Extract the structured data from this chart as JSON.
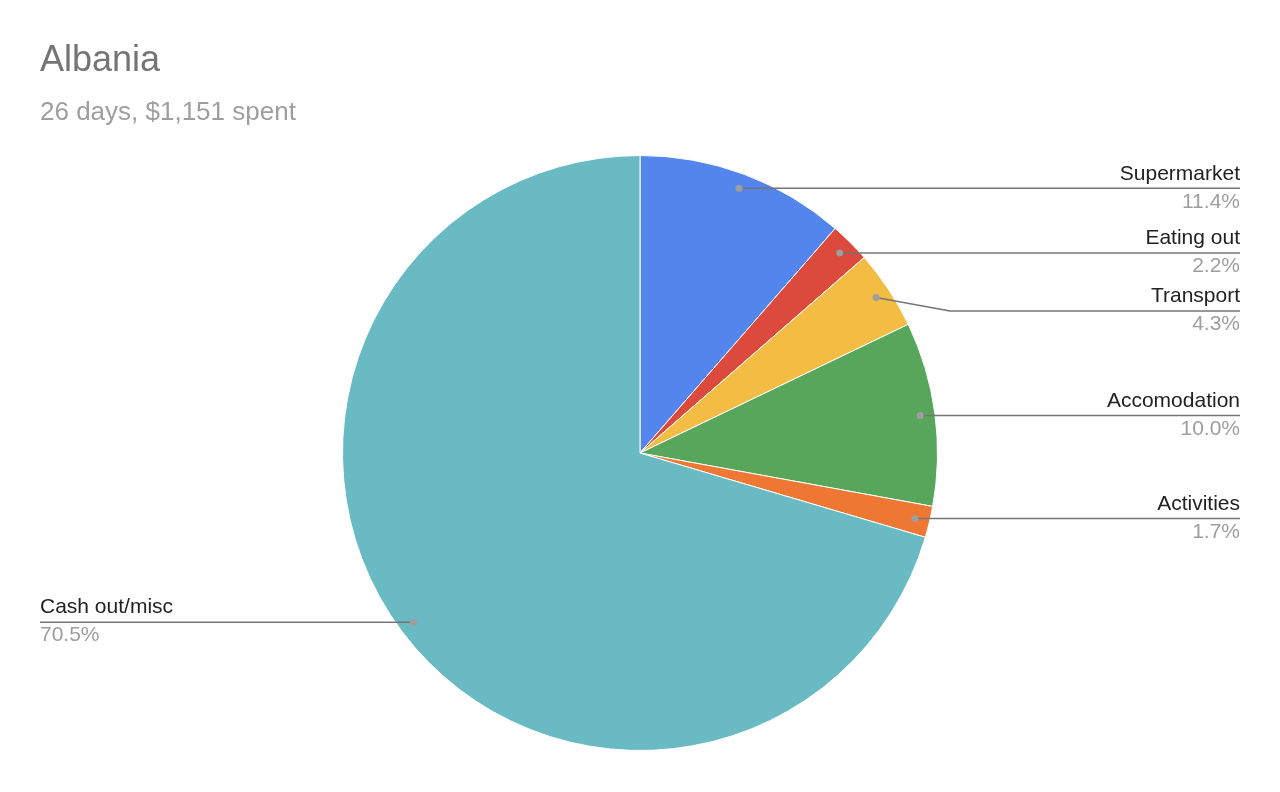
{
  "chart_data": {
    "type": "pie",
    "title": "Albania",
    "subtitle": "26 days, $1,151 spent",
    "categories": [
      "Supermarket",
      "Eating out",
      "Transport",
      "Accomodation",
      "Activities",
      "Cash out/misc"
    ],
    "values": [
      11.4,
      2.2,
      4.3,
      10.0,
      1.7,
      70.5
    ],
    "value_labels": [
      "11.4%",
      "2.2%",
      "4.3%",
      "10.0%",
      "1.7%",
      "70.5%"
    ],
    "colors": [
      "#5385ed",
      "#db4a3c",
      "#f2bd42",
      "#58a55c",
      "#ee7733",
      "#69bac3"
    ],
    "legend": false
  }
}
